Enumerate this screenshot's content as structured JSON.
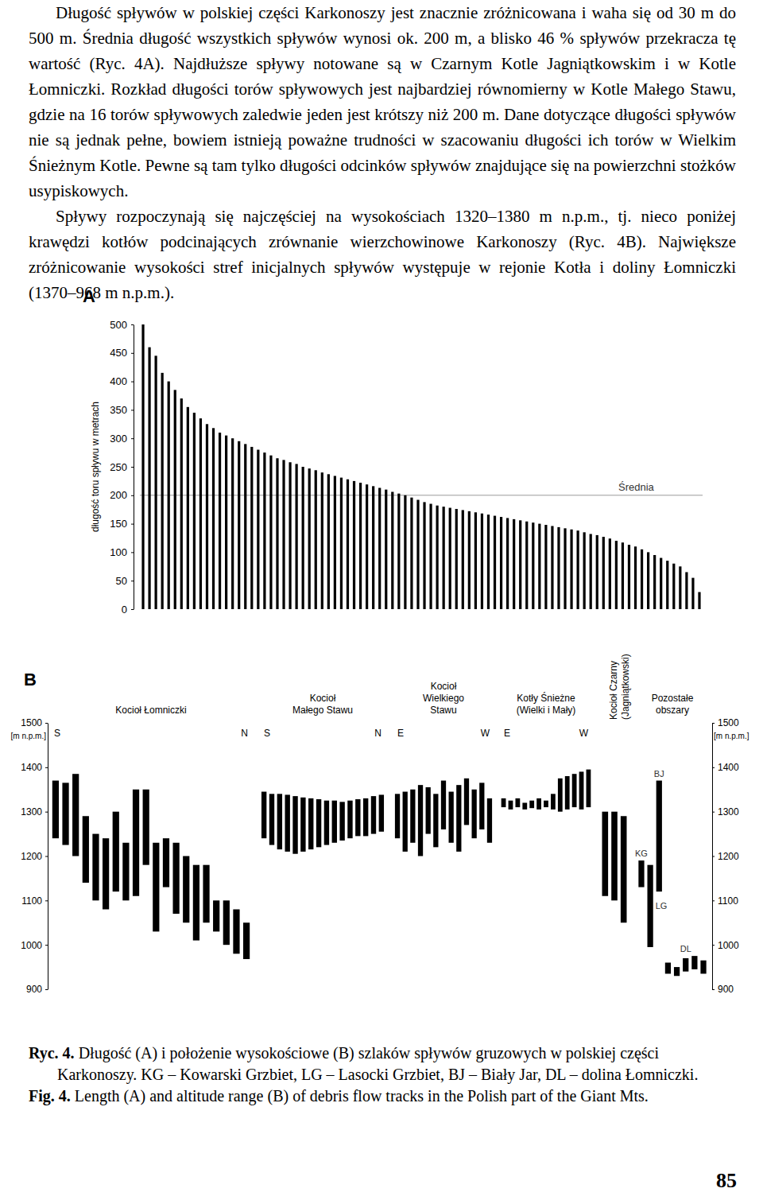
{
  "text": {
    "paragraphs": [
      "Długość spływów w polskiej części Karkonoszy jest znacznie zróżnicowana i waha się od 30 m do 500 m. Średnia długość wszystkich spływów wynosi ok. 200 m, a blisko 46 % spływów przekracza tę wartość (Ryc. 4A). Najdłuższe spływy notowane są w Czarnym Kotle Jagniątkowskim i w Kotle Łomniczki. Rozkład długości torów spływowych jest najbardziej równomierny w Kotle Małego Stawu, gdzie na 16 torów spływowych zaledwie jeden jest krótszy niż 200 m. Dane dotyczące długości spływów nie są jednak pełne, bowiem istnieją poważne trudności w szacowaniu długości ich torów w Wielkim Śnieżnym Kotle. Pewne są tam tylko długości odcinków spływów znajdujące się na powierzchni stożków usypiskowych.",
      "Spływy rozpoczynają się najczęściej na wysokościach 1320–1380 m n.p.m., tj. nieco poniżej krawędzi kotłów podcinających zrównanie wierzchowinowe Karkonoszy (Ryc. 4B). Największe zróżnicowanie wysokości stref inicjalnych spływów występuje w rejonie Kotła i doliny Łomniczki (1370–968 m n.p.m.)."
    ]
  },
  "chart_data": [
    {
      "type": "bar",
      "panel_label": "A",
      "y_label": "długość toru spływu w metrach",
      "categories": [
        null,
        null,
        null,
        null,
        null,
        null,
        null,
        null,
        null,
        null,
        null,
        null,
        null,
        null,
        null,
        null,
        null,
        null,
        null,
        null,
        null,
        null,
        null,
        null,
        null,
        null,
        null,
        null,
        null,
        null,
        null,
        null,
        null,
        null,
        null,
        null,
        null,
        null,
        null,
        null,
        null,
        null,
        null,
        null,
        null,
        null,
        null,
        null,
        null,
        null,
        null,
        null,
        null,
        null,
        null,
        null,
        null,
        null,
        null,
        null,
        null,
        null,
        null,
        null,
        null,
        null,
        null,
        null,
        null,
        null,
        null,
        null,
        null,
        null,
        null,
        null,
        null,
        null,
        null,
        null,
        null,
        null,
        null,
        null,
        null,
        null,
        null,
        null
      ],
      "values": [
        500,
        460,
        445,
        415,
        400,
        385,
        370,
        355,
        345,
        335,
        325,
        318,
        310,
        305,
        300,
        295,
        290,
        285,
        280,
        275,
        270,
        265,
        262,
        258,
        255,
        250,
        247,
        244,
        240,
        237,
        234,
        231,
        228,
        225,
        222,
        219,
        216,
        213,
        210,
        206,
        203,
        200,
        196,
        192,
        188,
        185,
        182,
        180,
        178,
        176,
        174,
        172,
        170,
        168,
        166,
        164,
        162,
        160,
        158,
        156,
        154,
        152,
        150,
        148,
        146,
        144,
        142,
        140,
        138,
        135,
        132,
        130,
        127,
        124,
        120,
        117,
        113,
        110,
        105,
        100,
        95,
        90,
        85,
        80,
        75,
        65,
        55,
        30
      ],
      "color": "#000000",
      "ylim": [
        0,
        500
      ],
      "yticks": [
        0,
        50,
        100,
        150,
        200,
        250,
        300,
        350,
        400,
        450,
        500
      ],
      "tick_labels": "y",
      "annotations": [
        {
          "text": "Średnia",
          "value": 200
        }
      ]
    },
    {
      "type": "range_bar",
      "panel_label": "B",
      "y_label": "[m n.p.m.]",
      "color": "#000000",
      "ylim": [
        900,
        1500
      ],
      "yticks": [
        900,
        1000,
        1100,
        1200,
        1300,
        1400,
        1500
      ],
      "tick_labels": "y",
      "groups": [
        {
          "name": [
            "Kocioł Łomniczki"
          ],
          "ends": [
            "S",
            "N"
          ],
          "low": [
            1240,
            1225,
            1200,
            1140,
            1100,
            1080,
            1120,
            1100,
            1110,
            1180,
            1030,
            1130,
            1070,
            1050,
            1010,
            1050,
            1030,
            1000,
            980,
            968
          ],
          "high": [
            1370,
            1365,
            1385,
            1290,
            1250,
            1240,
            1300,
            1230,
            1350,
            1350,
            1230,
            1240,
            1230,
            1200,
            1180,
            1180,
            1100,
            1100,
            1080,
            1050
          ]
        },
        {
          "name": [
            "Kocioł",
            "Małego Stawu"
          ],
          "ends": [
            "S",
            "N"
          ],
          "low": [
            1240,
            1225,
            1215,
            1210,
            1205,
            1210,
            1215,
            1220,
            1225,
            1230,
            1235,
            1240,
            1245,
            1245,
            1250,
            1255
          ],
          "high": [
            1345,
            1340,
            1340,
            1338,
            1335,
            1332,
            1330,
            1328,
            1325,
            1325,
            1322,
            1325,
            1328,
            1330,
            1335,
            1338
          ]
        },
        {
          "name": [
            "Kocioł",
            "Wielkiego",
            "Stawu"
          ],
          "ends": [
            "E",
            "W"
          ],
          "low": [
            1240,
            1210,
            1230,
            1200,
            1250,
            1220,
            1260,
            1230,
            1210,
            1270,
            1240,
            1260,
            1230
          ],
          "high": [
            1340,
            1345,
            1350,
            1360,
            1355,
            1340,
            1370,
            1345,
            1360,
            1375,
            1350,
            1365,
            1330
          ]
        },
        {
          "name": [
            "Kotły Śnieżne",
            "(Wielki i Mały)"
          ],
          "ends": [
            "E",
            "W"
          ],
          "low": [
            1310,
            1305,
            1310,
            1305,
            1308,
            1305,
            1310,
            1305,
            1300,
            1305,
            1310,
            1305,
            1310
          ],
          "high": [
            1330,
            1325,
            1330,
            1320,
            1325,
            1330,
            1325,
            1340,
            1375,
            1380,
            1385,
            1390,
            1395
          ]
        },
        {
          "name": [
            "Kocioł Czarny",
            "(Jagniątkowski)"
          ],
          "low": [
            1110,
            1100,
            1050
          ],
          "high": [
            1300,
            1300,
            1290
          ]
        },
        {
          "name": [
            "Pozostałe",
            "obszary"
          ],
          "subgroups": [
            {
              "label": "KG",
              "low": [
                1130
              ],
              "high": [
                1190
              ]
            },
            {
              "label": "LG",
              "low": [
                995
              ],
              "high": [
                1180
              ]
            },
            {
              "label": "BJ",
              "low": [
                1120
              ],
              "high": [
                1370
              ]
            },
            {
              "label": "DL",
              "low": [
                935,
                930,
                940,
                945,
                935
              ],
              "high": [
                960,
                950,
                970,
                975,
                965
              ]
            }
          ]
        }
      ]
    }
  ],
  "caption": {
    "pl_label": "Ryc. 4.",
    "pl_text": "Długość (A) i położenie wysokościowe (B) szlaków spływów gruzowych w polskiej części Karkonoszy. KG – Kowarski Grzbiet, LG – Lasocki Grzbiet, BJ – Biały Jar, DL – dolina Łomniczki.",
    "en_label": "Fig. 4.",
    "en_text": "Length (A) and altitude range (B) of debris flow tracks in the Polish part of the Giant Mts."
  },
  "page_number": "85"
}
